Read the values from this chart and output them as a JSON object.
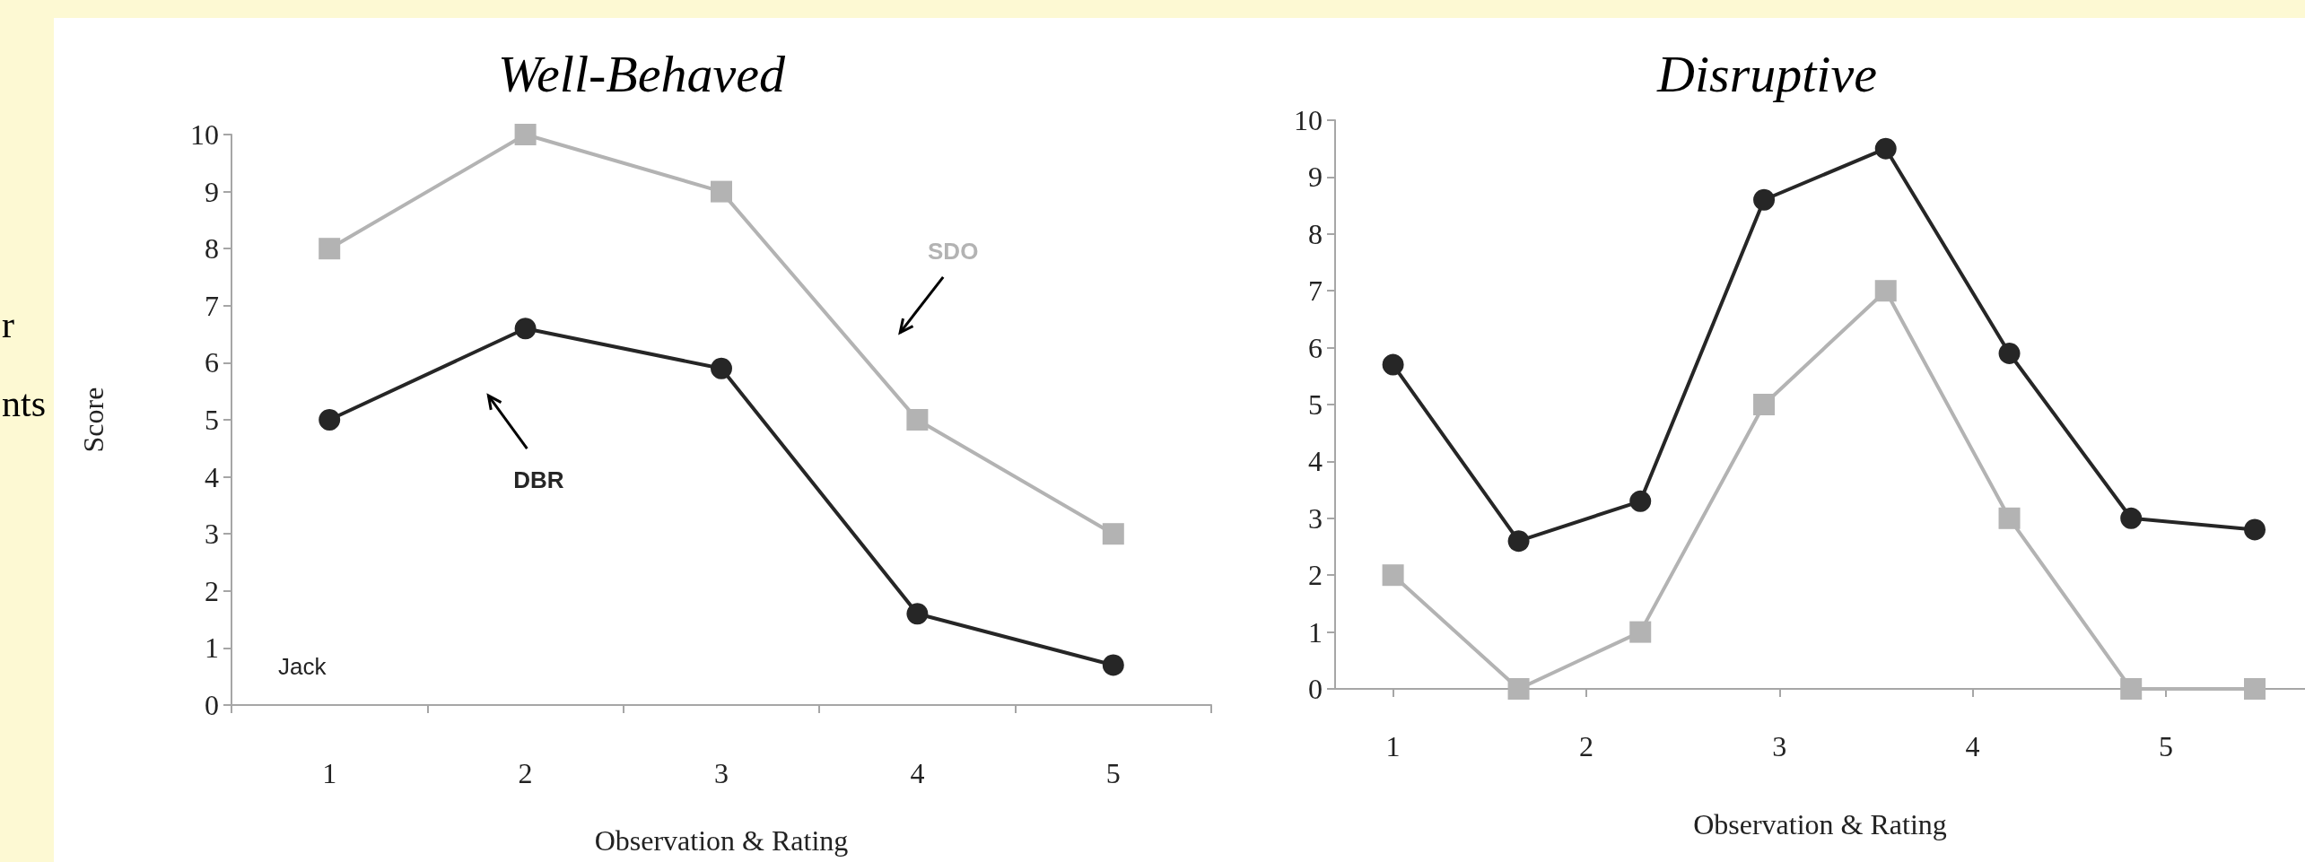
{
  "chart_data": [
    {
      "type": "line",
      "title": "Well-Behaved",
      "xlabel": "Observation & Rating",
      "ylabel": "Score",
      "categories": [
        "1",
        "2",
        "3",
        "4",
        "5"
      ],
      "series": [
        {
          "name": "SDO",
          "color": "#b3b3b3",
          "marker": "square",
          "values": [
            8,
            10,
            9,
            5,
            3
          ]
        },
        {
          "name": "DBR",
          "color": "#262626",
          "marker": "circle",
          "values": [
            5,
            6.6,
            5.9,
            1.6,
            0.7
          ]
        }
      ],
      "ylim": [
        0,
        10
      ],
      "yticks": [
        0,
        1,
        2,
        3,
        4,
        5,
        6,
        7,
        8,
        9,
        10
      ],
      "annotations": [
        "Jack",
        "r",
        "nts"
      ]
    },
    {
      "type": "line",
      "title": "Disruptive",
      "xlabel": "Observation & Rating",
      "x": [
        1,
        1.65,
        2.28,
        2.92,
        3.55,
        4.19,
        4.82,
        5.46
      ],
      "series": [
        {
          "color": "#262626",
          "marker": "circle",
          "values": [
            5.7,
            2.6,
            3.3,
            8.6,
            9.5,
            5.9,
            3.0,
            2.8
          ]
        },
        {
          "color": "#b3b3b3",
          "marker": "square",
          "values": [
            2,
            0,
            1,
            5,
            7,
            3,
            0,
            0
          ]
        }
      ],
      "xlim": [
        0.7,
        5.72
      ],
      "xticks": [
        1,
        2,
        3,
        4,
        5
      ],
      "ylim": [
        0,
        10
      ],
      "yticks": [
        0,
        1,
        2,
        3,
        4,
        5,
        6,
        7,
        8,
        9,
        10
      ]
    }
  ]
}
